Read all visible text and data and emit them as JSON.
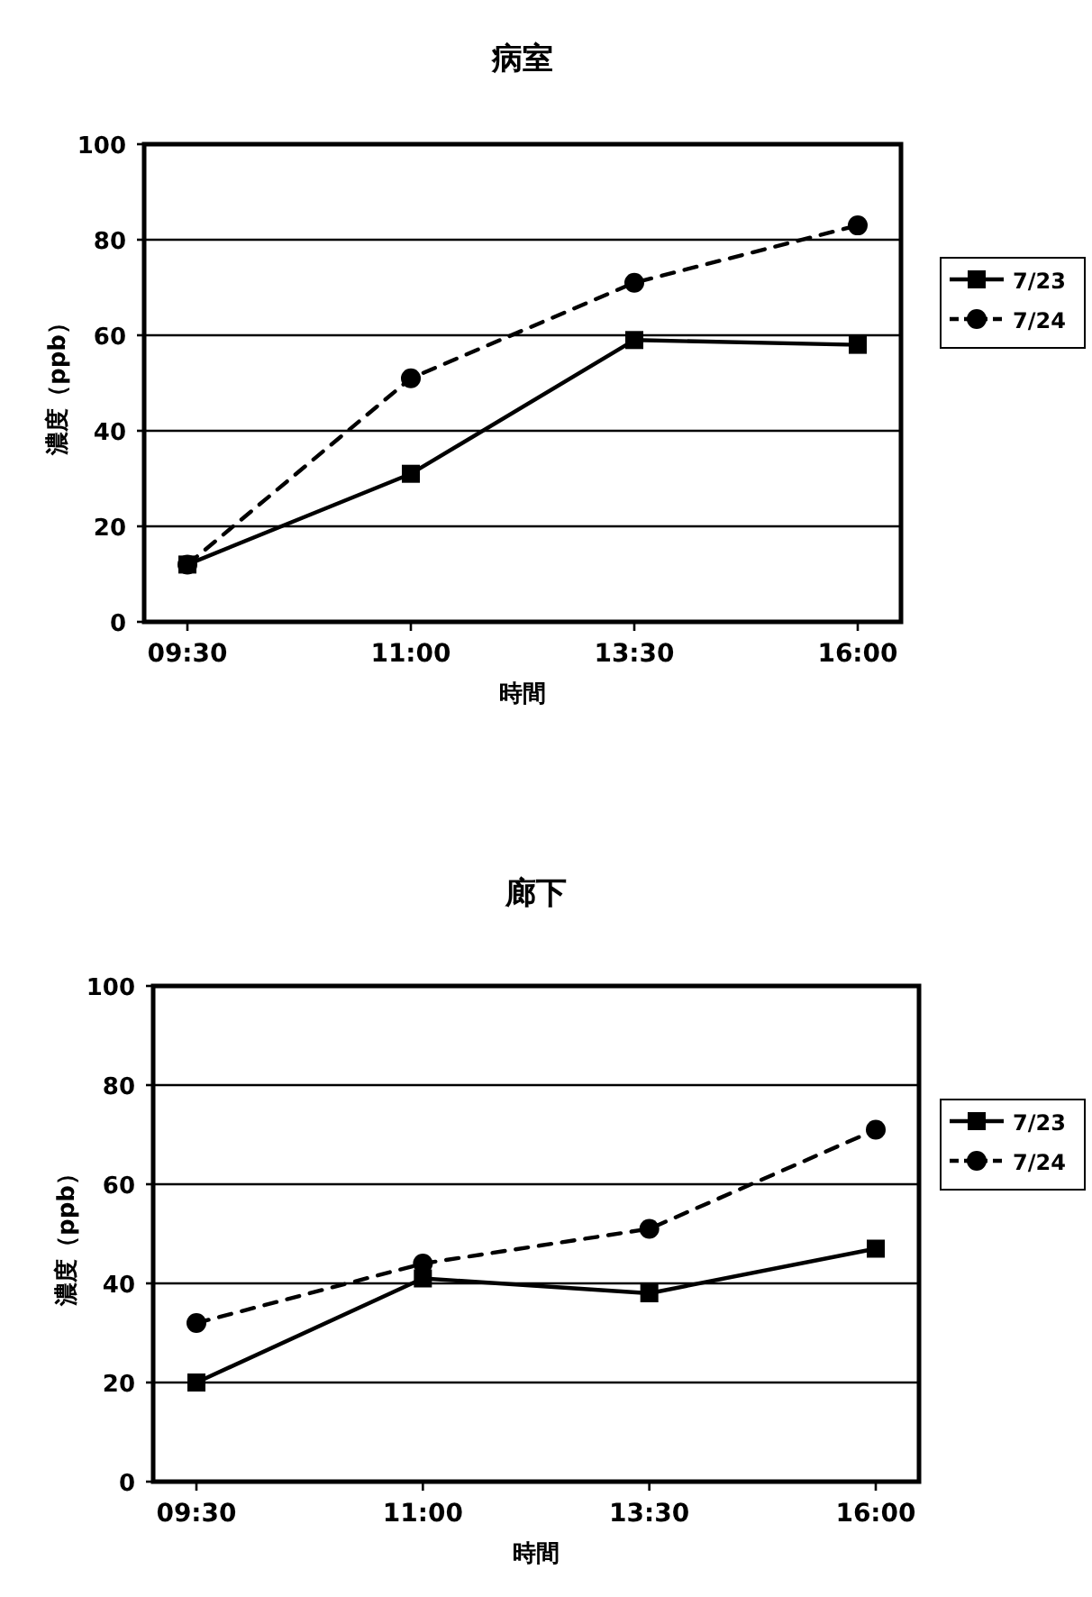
{
  "chart_data": [
    {
      "type": "line",
      "title": "病室",
      "xlabel": "時間",
      "ylabel": "濃度（ppb）",
      "categories": [
        "09:30",
        "11:00",
        "13:30",
        "16:00"
      ],
      "ylim": [
        0,
        100
      ],
      "yticks": [
        0,
        20,
        40,
        60,
        80,
        100
      ],
      "grid": "y",
      "legend": "right",
      "series": [
        {
          "name": "7/23",
          "color": "#000000",
          "marker": "square",
          "line_style": "solid",
          "values": [
            12,
            31,
            59,
            58
          ]
        },
        {
          "name": "7/24",
          "color": "#000000",
          "marker": "circle",
          "line_style": "dashed",
          "values": [
            12,
            51,
            71,
            83
          ]
        }
      ]
    },
    {
      "type": "line",
      "title": "廊下",
      "xlabel": "時間",
      "ylabel": "濃度（ppb）",
      "categories": [
        "09:30",
        "11:00",
        "13:30",
        "16:00"
      ],
      "ylim": [
        0,
        100
      ],
      "yticks": [
        0,
        20,
        40,
        60,
        80,
        100
      ],
      "grid": "y",
      "legend": "right",
      "series": [
        {
          "name": "7/23",
          "color": "#000000",
          "marker": "square",
          "line_style": "solid",
          "values": [
            20,
            41,
            38,
            47
          ]
        },
        {
          "name": "7/24",
          "color": "#000000",
          "marker": "circle",
          "line_style": "dashed",
          "values": [
            32,
            44,
            51,
            71
          ]
        }
      ]
    }
  ]
}
